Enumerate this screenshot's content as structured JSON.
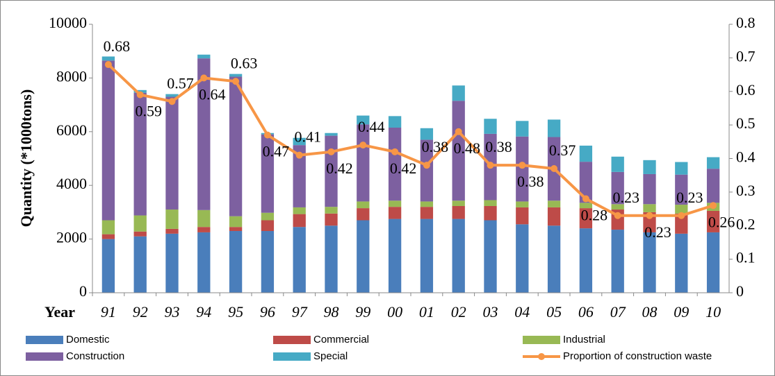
{
  "chart_data": {
    "type": "bar",
    "stacked": true,
    "y_label": "Quantity (*1000tons)",
    "x_label": "Year",
    "categories": [
      "91",
      "92",
      "93",
      "94",
      "95",
      "96",
      "97",
      "98",
      "99",
      "00",
      "01",
      "02",
      "03",
      "04",
      "05",
      "06",
      "07",
      "08",
      "09",
      "10"
    ],
    "series": [
      {
        "name": "Domestic",
        "color": "#4a7ebb",
        "values": [
          2000,
          2100,
          2200,
          2250,
          2300,
          2300,
          2450,
          2500,
          2700,
          2750,
          2750,
          2750,
          2700,
          2550,
          2500,
          2400,
          2350,
          2250,
          2200,
          2250
        ]
      },
      {
        "name": "Commercial",
        "color": "#be4b48",
        "values": [
          180,
          180,
          180,
          200,
          150,
          400,
          480,
          450,
          450,
          450,
          450,
          480,
          530,
          630,
          680,
          750,
          750,
          750,
          750,
          800
        ]
      },
      {
        "name": "Industrial",
        "color": "#98b954",
        "values": [
          520,
          600,
          720,
          630,
          400,
          280,
          250,
          250,
          250,
          230,
          200,
          200,
          220,
          220,
          250,
          200,
          200,
          300,
          330,
          300
        ]
      },
      {
        "name": "Construction",
        "color": "#7d60a0",
        "values": [
          5950,
          4570,
          4200,
          5650,
          5200,
          2920,
          2320,
          2650,
          2870,
          2720,
          2300,
          3720,
          2470,
          2420,
          2370,
          1530,
          1200,
          1120,
          1120,
          1270
        ]
      },
      {
        "name": "Special",
        "color": "#46aac5",
        "values": [
          150,
          100,
          100,
          140,
          100,
          50,
          270,
          100,
          330,
          430,
          430,
          570,
          560,
          580,
          650,
          600,
          570,
          520,
          470,
          430
        ]
      },
      {
        "name": "Proportion of construction waste",
        "color": "#f79646",
        "type": "line",
        "axis": "y2",
        "values": [
          0.68,
          0.59,
          0.57,
          0.64,
          0.63,
          0.47,
          0.41,
          0.42,
          0.44,
          0.42,
          0.38,
          0.48,
          0.38,
          0.38,
          0.37,
          0.28,
          0.23,
          0.23,
          0.23,
          0.26
        ]
      }
    ],
    "ylim": [
      0,
      10000
    ],
    "yticks": [
      0,
      2000,
      4000,
      6000,
      8000,
      10000
    ],
    "y2lim": [
      0,
      0.8
    ],
    "y2ticks": [
      0,
      0.1,
      0.2,
      0.3,
      0.4,
      0.5,
      0.6,
      0.7,
      0.8
    ],
    "grid": false
  }
}
